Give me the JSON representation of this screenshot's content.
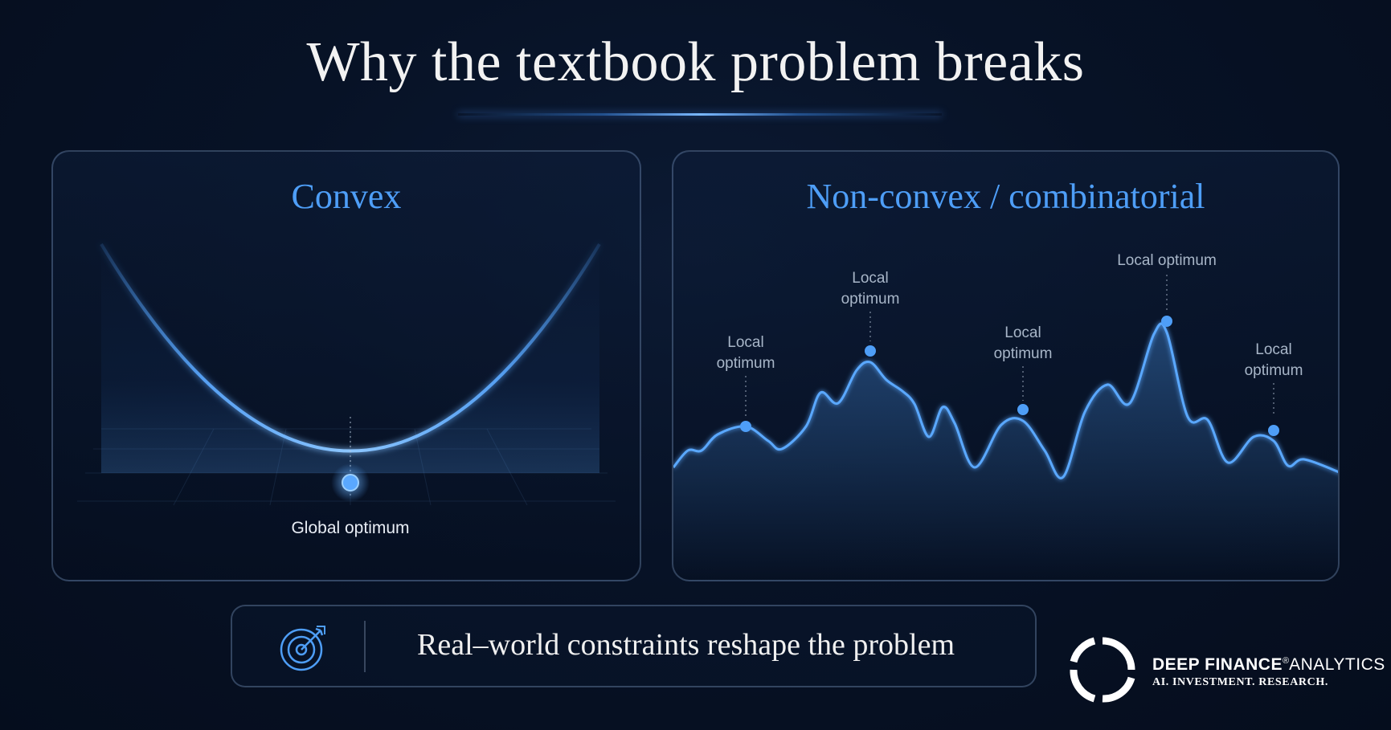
{
  "title": "Why the textbook problem breaks",
  "convex_panel": {
    "title": "Convex",
    "label": "Global optimum"
  },
  "nonconvex_panel": {
    "title": "Non-convex / combinatorial",
    "labels": [
      [
        "Local",
        "optimum"
      ],
      [
        "Local",
        "optimum"
      ],
      [
        "Local",
        "optimum"
      ],
      [
        "Local optimum"
      ],
      [
        "Local",
        "optimum"
      ]
    ]
  },
  "banner": {
    "icon": "target-icon",
    "text": "Real–world constraints reshape the problem"
  },
  "brand": {
    "logo": "circular-arrows-logo",
    "name_bold": "DEEP FINANCE",
    "registered": "®",
    "name_light": "ANALYTICS",
    "tagline": "AI. INVESTMENT. RESEARCH."
  },
  "colors": {
    "background": "#061026",
    "accent": "#4e9ef7",
    "text": "#f2f2f2"
  }
}
